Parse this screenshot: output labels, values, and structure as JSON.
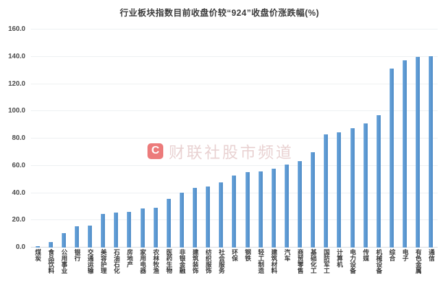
{
  "watermark": {
    "logo_letter": "C",
    "text": "财联社股市频道"
  },
  "chart_data": {
    "type": "bar",
    "title": "行业板块指数目前收盘价较“924”收盘价涨跌幅(%)",
    "xlabel": "",
    "ylabel": "",
    "ylim": [
      0,
      160
    ],
    "ytick_step": 20,
    "ytick_labels": [
      "0.0",
      "20.0",
      "40.0",
      "60.0",
      "80.0",
      "100.0",
      "120.0",
      "140.0",
      "160.0"
    ],
    "grid": true,
    "legend_position": "none",
    "bar_color": "#5B9BD5",
    "gridline_color": "#EDF0F2",
    "categories": [
      "煤炭",
      "食品饮料",
      "公用事业",
      "银行",
      "交通运输",
      "美容护理",
      "石油石化",
      "房地产",
      "家用电器",
      "农林牧渔",
      "医药生物",
      "非银金融",
      "建筑装饰",
      "纺织服饰",
      "社会服务",
      "环保",
      "钢铁",
      "轻工制造",
      "建筑材料",
      "汽车",
      "商贸零售",
      "基础化工",
      "国防军工",
      "计算机",
      "电力设备",
      "传媒",
      "机械设备",
      "综合",
      "电子",
      "有色金属",
      "通信"
    ],
    "values": [
      0.8,
      3.8,
      10.6,
      15.4,
      15.9,
      24.7,
      25.9,
      26.4,
      28.6,
      29.1,
      35.8,
      40.3,
      43.9,
      44.7,
      47.9,
      52.7,
      55.5,
      55.8,
      57.8,
      61.0,
      63.5,
      70.0,
      83.2,
      84.6,
      87.8,
      91.3,
      97.0,
      131.4,
      137.6,
      140.0,
      140.3
    ]
  }
}
